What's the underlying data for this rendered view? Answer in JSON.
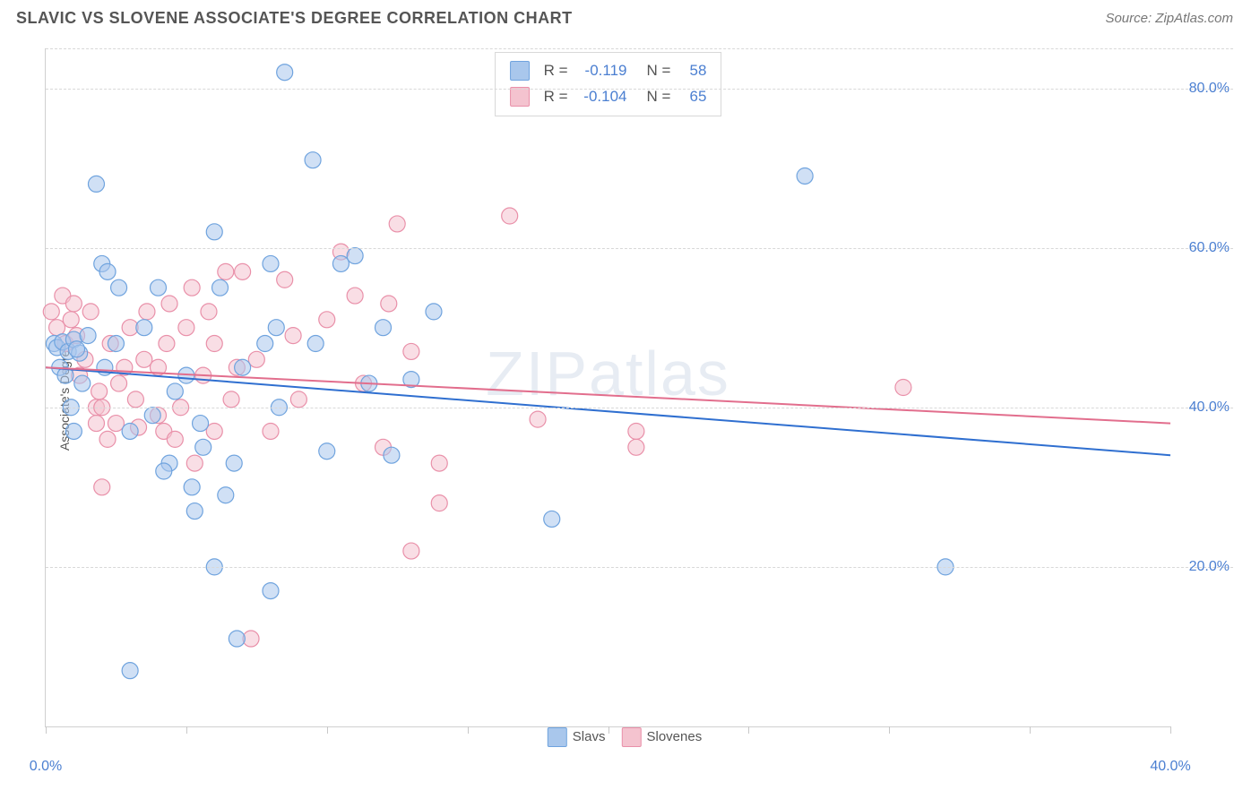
{
  "header": {
    "title": "SLAVIC VS SLOVENE ASSOCIATE'S DEGREE CORRELATION CHART",
    "source": "Source: ZipAtlas.com"
  },
  "watermark": "ZIPatlas",
  "chart": {
    "type": "scatter",
    "ylabel": "Associate's Degree",
    "xlim": [
      0,
      40
    ],
    "ylim": [
      0,
      85
    ],
    "yticks": [
      20,
      40,
      60,
      80
    ],
    "ytick_labels": [
      "20.0%",
      "40.0%",
      "60.0%",
      "80.0%"
    ],
    "xticks": [
      0,
      5,
      10,
      15,
      20,
      25,
      30,
      35,
      40
    ],
    "xtick_labels_shown": {
      "0": "0.0%",
      "40": "40.0%"
    },
    "background_color": "#ffffff",
    "grid_color": "#d8d8d8",
    "axis_color": "#d0d0d0",
    "marker_radius": 9,
    "marker_opacity": 0.55,
    "line_width": 2,
    "series": [
      {
        "name": "Slavs",
        "marker_fill": "#a9c7ec",
        "marker_stroke": "#6fa3de",
        "line_color": "#2f6fd0",
        "R": "-0.119",
        "N": "58",
        "trend": {
          "x1": 0,
          "y1": 45,
          "x2": 40,
          "y2": 34
        },
        "points": [
          [
            0.3,
            48
          ],
          [
            0.4,
            47.5
          ],
          [
            0.6,
            48.2
          ],
          [
            0.8,
            47
          ],
          [
            1.0,
            48.5
          ],
          [
            1.2,
            46.8
          ],
          [
            0.5,
            45
          ],
          [
            1.0,
            37
          ],
          [
            1.3,
            43
          ],
          [
            0.9,
            40
          ],
          [
            1.8,
            68
          ],
          [
            2.0,
            58
          ],
          [
            2.2,
            57
          ],
          [
            2.6,
            55
          ],
          [
            2.1,
            45
          ],
          [
            3.5,
            50
          ],
          [
            3.0,
            37
          ],
          [
            3.0,
            7
          ],
          [
            4.0,
            55
          ],
          [
            4.4,
            33
          ],
          [
            5.0,
            44
          ],
          [
            5.5,
            38
          ],
          [
            5.2,
            30
          ],
          [
            5.6,
            35
          ],
          [
            5.3,
            27
          ],
          [
            6.0,
            20
          ],
          [
            6.0,
            62
          ],
          [
            6.2,
            55
          ],
          [
            6.4,
            29
          ],
          [
            6.7,
            33
          ],
          [
            6.8,
            11
          ],
          [
            7.0,
            45
          ],
          [
            7.8,
            48
          ],
          [
            8.0,
            58
          ],
          [
            8.5,
            82
          ],
          [
            8.3,
            40
          ],
          [
            8.2,
            50
          ],
          [
            8.0,
            17
          ],
          [
            9.5,
            71
          ],
          [
            9.6,
            48
          ],
          [
            10.0,
            34.5
          ],
          [
            10.5,
            58
          ],
          [
            11.0,
            59
          ],
          [
            11.5,
            43
          ],
          [
            12.0,
            50
          ],
          [
            12.3,
            34
          ],
          [
            13.0,
            43.5
          ],
          [
            13.8,
            52
          ],
          [
            18.0,
            26
          ],
          [
            27.0,
            69
          ],
          [
            32.0,
            20
          ],
          [
            1.5,
            49
          ],
          [
            0.7,
            44
          ],
          [
            1.1,
            47.3
          ],
          [
            2.5,
            48
          ],
          [
            4.6,
            42
          ],
          [
            3.8,
            39
          ],
          [
            4.2,
            32
          ]
        ]
      },
      {
        "name": "Slovenes",
        "marker_fill": "#f4c3cf",
        "marker_stroke": "#e990a9",
        "line_color": "#e26e8d",
        "R": "-0.104",
        "N": "65",
        "trend": {
          "x1": 0,
          "y1": 45,
          "x2": 40,
          "y2": 38
        },
        "points": [
          [
            0.2,
            52
          ],
          [
            0.4,
            50
          ],
          [
            0.6,
            54
          ],
          [
            0.7,
            48
          ],
          [
            0.9,
            51
          ],
          [
            1.0,
            53
          ],
          [
            1.1,
            49
          ],
          [
            1.2,
            44
          ],
          [
            1.8,
            40
          ],
          [
            1.8,
            38
          ],
          [
            1.9,
            42
          ],
          [
            2.0,
            40
          ],
          [
            2.0,
            30
          ],
          [
            2.2,
            36
          ],
          [
            2.3,
            48
          ],
          [
            2.5,
            38
          ],
          [
            2.8,
            45
          ],
          [
            3.0,
            50
          ],
          [
            3.2,
            41
          ],
          [
            3.3,
            37.5
          ],
          [
            3.5,
            46
          ],
          [
            4.0,
            39
          ],
          [
            4.0,
            45
          ],
          [
            4.2,
            37
          ],
          [
            4.4,
            53
          ],
          [
            4.6,
            36
          ],
          [
            4.8,
            40
          ],
          [
            5.0,
            50
          ],
          [
            5.2,
            55
          ],
          [
            5.3,
            33
          ],
          [
            5.6,
            44
          ],
          [
            6.0,
            37
          ],
          [
            6.0,
            48
          ],
          [
            6.4,
            57
          ],
          [
            6.6,
            41
          ],
          [
            6.8,
            45
          ],
          [
            7.0,
            57
          ],
          [
            7.3,
            11
          ],
          [
            7.5,
            46
          ],
          [
            8.5,
            56
          ],
          [
            8.0,
            37
          ],
          [
            9.0,
            41
          ],
          [
            10.0,
            51
          ],
          [
            10.5,
            59.5
          ],
          [
            11.0,
            54
          ],
          [
            11.3,
            43
          ],
          [
            12.0,
            35
          ],
          [
            12.2,
            53
          ],
          [
            12.5,
            63
          ],
          [
            13.0,
            47
          ],
          [
            13.0,
            22
          ],
          [
            14.0,
            33
          ],
          [
            14.0,
            28
          ],
          [
            16.5,
            64
          ],
          [
            17.5,
            38.5
          ],
          [
            21.0,
            37
          ],
          [
            21.0,
            35
          ],
          [
            30.5,
            42.5
          ],
          [
            1.4,
            46
          ],
          [
            1.6,
            52
          ],
          [
            2.6,
            43
          ],
          [
            3.6,
            52
          ],
          [
            4.3,
            48
          ],
          [
            5.8,
            52
          ],
          [
            8.8,
            49
          ]
        ]
      }
    ],
    "xlegend": [
      {
        "label": "Slavs",
        "fill": "#a9c7ec",
        "stroke": "#6fa3de"
      },
      {
        "label": "Slovenes",
        "fill": "#f4c3cf",
        "stroke": "#e990a9"
      }
    ],
    "stats_legend": {
      "r_label": "R =",
      "n_label": "N ="
    }
  }
}
